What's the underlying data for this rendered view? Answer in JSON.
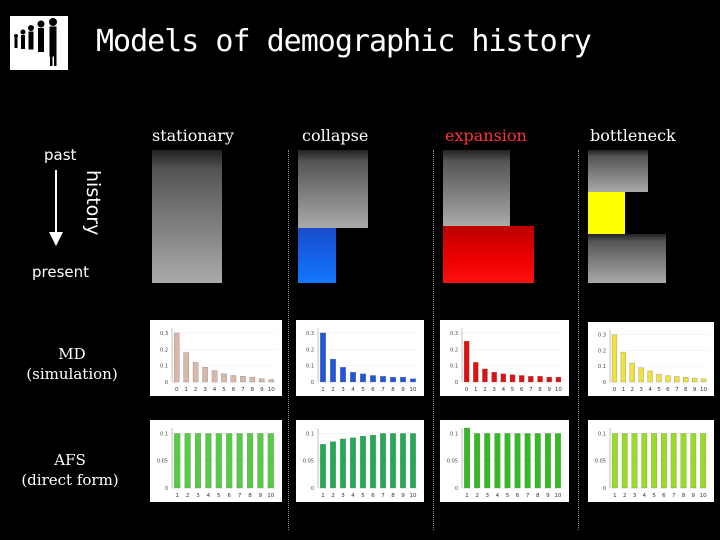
{
  "title": "Models of demographic history",
  "axis": {
    "past": "past",
    "history": "history",
    "present": "present"
  },
  "rows": {
    "md": "MD\n(simulation)",
    "afs": "AFS\n(direct form)"
  },
  "models": [
    {
      "key": "stationary",
      "label": "stationary",
      "color": "#ffffff"
    },
    {
      "key": "collapse",
      "label": "collapse",
      "color": "#ffffff"
    },
    {
      "key": "expansion",
      "label": "expansion",
      "color": "#ff3333"
    },
    {
      "key": "bottleneck",
      "label": "bottleneck",
      "color": "#ffffff"
    }
  ],
  "chart_data": [
    {
      "type": "bar",
      "model": "stationary",
      "row": "MD",
      "categories": [
        "0",
        "1",
        "2",
        "3",
        "4",
        "5",
        "6",
        "7",
        "8",
        "9",
        "10"
      ],
      "yticks": [
        "0.3",
        "0.2",
        "0.1",
        "0"
      ],
      "values": [
        0.3,
        0.18,
        0.12,
        0.09,
        0.07,
        0.05,
        0.04,
        0.035,
        0.03,
        0.02,
        0.015
      ],
      "ylim": [
        0,
        0.33
      ],
      "color": "#d8b8a8"
    },
    {
      "type": "bar",
      "model": "collapse",
      "row": "MD",
      "categories": [
        "1",
        "2",
        "3",
        "4",
        "5",
        "6",
        "7",
        "8",
        "9",
        "10"
      ],
      "yticks": [
        "0.3",
        "0.2",
        "0.1",
        "0"
      ],
      "values": [
        0.3,
        0.14,
        0.09,
        0.06,
        0.05,
        0.04,
        0.035,
        0.03,
        0.03,
        0.02
      ],
      "ylim": [
        0,
        0.33
      ],
      "color": "#2255dd"
    },
    {
      "type": "bar",
      "model": "expansion",
      "row": "MD",
      "categories": [
        "0",
        "1",
        "2",
        "3",
        "4",
        "5",
        "6",
        "7",
        "8",
        "9",
        "10"
      ],
      "yticks": [
        "0.3",
        "0.2",
        "0.1",
        "0"
      ],
      "values": [
        0.25,
        0.12,
        0.08,
        0.06,
        0.05,
        0.045,
        0.04,
        0.035,
        0.035,
        0.03,
        0.03
      ],
      "ylim": [
        0,
        0.33
      ],
      "color": "#dd1111"
    },
    {
      "type": "bar",
      "model": "bottleneck",
      "row": "MD",
      "categories": [
        "0",
        "1",
        "2",
        "3",
        "4",
        "5",
        "6",
        "7",
        "8",
        "9",
        "10"
      ],
      "yticks": [
        "0.3",
        "0.2",
        "0.1",
        "0"
      ],
      "values": [
        0.3,
        0.19,
        0.12,
        0.09,
        0.07,
        0.05,
        0.04,
        0.035,
        0.03,
        0.025,
        0.02
      ],
      "ylim": [
        0,
        0.33
      ],
      "color": "#f0e040"
    },
    {
      "type": "bar",
      "model": "stationary",
      "row": "AFS",
      "categories": [
        "1",
        "2",
        "3",
        "4",
        "5",
        "6",
        "7",
        "8",
        "9",
        "10"
      ],
      "yticks": [
        "0.1",
        "0.05",
        "0"
      ],
      "values": [
        0.1,
        0.1,
        0.1,
        0.1,
        0.1,
        0.1,
        0.1,
        0.1,
        0.1,
        0.1
      ],
      "ylim": [
        0,
        0.11
      ],
      "color": "#55cc44"
    },
    {
      "type": "bar",
      "model": "collapse",
      "row": "AFS",
      "categories": [
        "1",
        "2",
        "3",
        "4",
        "5",
        "6",
        "7",
        "8",
        "9",
        "10"
      ],
      "yticks": [
        "0.1",
        "0.05",
        "0"
      ],
      "values": [
        0.08,
        0.085,
        0.09,
        0.092,
        0.095,
        0.097,
        0.1,
        0.1,
        0.1,
        0.1
      ],
      "ylim": [
        0,
        0.11
      ],
      "color": "#22aa55"
    },
    {
      "type": "bar",
      "model": "expansion",
      "row": "AFS",
      "categories": [
        "1",
        "2",
        "3",
        "4",
        "5",
        "6",
        "7",
        "8",
        "9",
        "10"
      ],
      "yticks": [
        "0.1",
        "0.05",
        "0"
      ],
      "values": [
        0.11,
        0.1,
        0.1,
        0.1,
        0.1,
        0.1,
        0.1,
        0.1,
        0.1,
        0.1
      ],
      "ylim": [
        0,
        0.11
      ],
      "color": "#33bb22"
    },
    {
      "type": "bar",
      "model": "bottleneck",
      "row": "AFS",
      "categories": [
        "1",
        "2",
        "3",
        "4",
        "5",
        "6",
        "7",
        "8",
        "9",
        "10"
      ],
      "yticks": [
        "0.1",
        "0.05",
        "0"
      ],
      "values": [
        0.1,
        0.1,
        0.1,
        0.1,
        0.1,
        0.1,
        0.1,
        0.1,
        0.1,
        0.1
      ],
      "ylim": [
        0,
        0.11
      ],
      "color": "#99dd22"
    }
  ]
}
